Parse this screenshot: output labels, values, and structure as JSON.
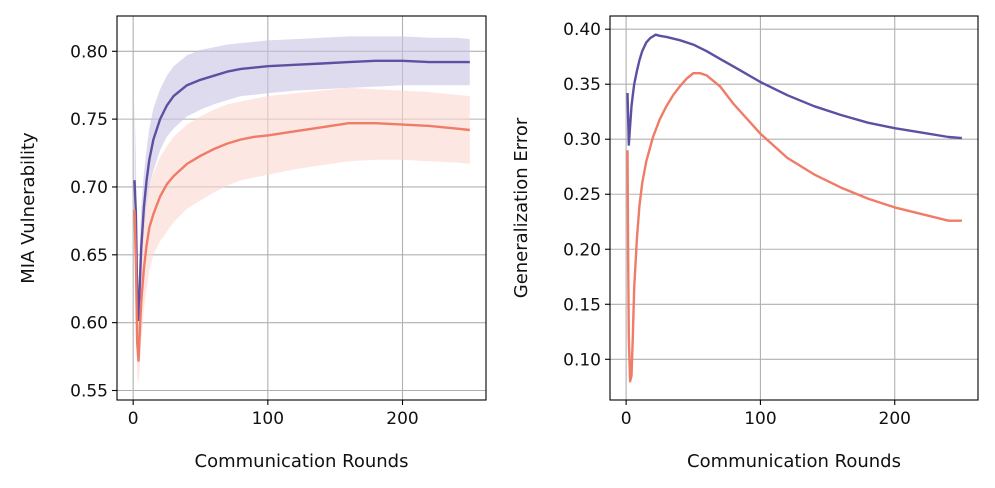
{
  "chart_data": [
    {
      "type": "line",
      "xlabel": "Communication Rounds",
      "ylabel": "MIA Vulnerability",
      "xlim": [
        -12,
        262
      ],
      "ylim": [
        0.543,
        0.826
      ],
      "xticks": [
        0,
        100,
        200
      ],
      "xtick_labels": [
        "0",
        "100",
        "200"
      ],
      "yticks": [
        0.55,
        0.6,
        0.65,
        0.7,
        0.75,
        0.8
      ],
      "ytick_labels": [
        "0.55",
        "0.60",
        "0.65",
        "0.70",
        "0.75",
        "0.80"
      ],
      "grid": true,
      "series": [
        {
          "name": "purple",
          "color": "#5e4fa2",
          "band_color": "#c9c3e4",
          "x": [
            1,
            2,
            3,
            4,
            5,
            6,
            8,
            10,
            12,
            15,
            20,
            25,
            30,
            40,
            50,
            60,
            70,
            80,
            90,
            100,
            120,
            140,
            160,
            180,
            200,
            220,
            240,
            250
          ],
          "y": [
            0.705,
            0.68,
            0.62,
            0.602,
            0.63,
            0.655,
            0.685,
            0.705,
            0.72,
            0.735,
            0.75,
            0.76,
            0.767,
            0.775,
            0.779,
            0.782,
            0.785,
            0.787,
            0.788,
            0.789,
            0.79,
            0.791,
            0.792,
            0.793,
            0.793,
            0.792,
            0.792,
            0.792
          ],
          "lower": [
            0.685,
            0.66,
            0.6,
            0.585,
            0.61,
            0.635,
            0.665,
            0.685,
            0.7,
            0.712,
            0.727,
            0.737,
            0.743,
            0.752,
            0.757,
            0.761,
            0.764,
            0.767,
            0.768,
            0.769,
            0.771,
            0.772,
            0.773,
            0.774,
            0.775,
            0.775,
            0.775,
            0.775
          ],
          "upper": [
            0.765,
            0.72,
            0.65,
            0.625,
            0.66,
            0.685,
            0.71,
            0.728,
            0.743,
            0.758,
            0.772,
            0.782,
            0.789,
            0.797,
            0.801,
            0.803,
            0.805,
            0.806,
            0.807,
            0.808,
            0.809,
            0.81,
            0.811,
            0.811,
            0.811,
            0.81,
            0.81,
            0.809
          ]
        },
        {
          "name": "salmon",
          "color": "#f07b67",
          "band_color": "#fbd7cf",
          "x": [
            1,
            2,
            3,
            4,
            5,
            6,
            8,
            10,
            12,
            15,
            20,
            25,
            30,
            40,
            50,
            60,
            70,
            80,
            90,
            100,
            120,
            140,
            160,
            180,
            200,
            220,
            240,
            250
          ],
          "y": [
            0.683,
            0.645,
            0.585,
            0.572,
            0.595,
            0.615,
            0.64,
            0.657,
            0.67,
            0.68,
            0.693,
            0.702,
            0.708,
            0.717,
            0.723,
            0.728,
            0.732,
            0.735,
            0.737,
            0.738,
            0.741,
            0.744,
            0.747,
            0.747,
            0.746,
            0.745,
            0.743,
            0.742
          ],
          "lower": [
            0.66,
            0.61,
            0.56,
            0.555,
            0.568,
            0.585,
            0.61,
            0.625,
            0.638,
            0.65,
            0.66,
            0.667,
            0.674,
            0.684,
            0.69,
            0.696,
            0.701,
            0.705,
            0.707,
            0.709,
            0.713,
            0.716,
            0.719,
            0.72,
            0.72,
            0.719,
            0.718,
            0.717
          ],
          "upper": [
            0.7,
            0.68,
            0.615,
            0.6,
            0.625,
            0.645,
            0.67,
            0.688,
            0.7,
            0.71,
            0.722,
            0.73,
            0.737,
            0.746,
            0.752,
            0.757,
            0.761,
            0.763,
            0.765,
            0.767,
            0.769,
            0.771,
            0.773,
            0.772,
            0.771,
            0.77,
            0.768,
            0.767
          ]
        }
      ]
    },
    {
      "type": "line",
      "xlabel": "Communication Rounds",
      "ylabel": "Generalization Error",
      "xlim": [
        -12,
        262
      ],
      "ylim": [
        0.063,
        0.412
      ],
      "xticks": [
        0,
        100,
        200
      ],
      "xtick_labels": [
        "0",
        "100",
        "200"
      ],
      "yticks": [
        0.1,
        0.15,
        0.2,
        0.25,
        0.3,
        0.35,
        0.4
      ],
      "ytick_labels": [
        "0.10",
        "0.15",
        "0.20",
        "0.25",
        "0.30",
        "0.35",
        "0.40"
      ],
      "grid": true,
      "series": [
        {
          "name": "purple",
          "color": "#5e4fa2",
          "x": [
            1,
            1.5,
            2,
            3,
            4,
            5,
            6,
            8,
            10,
            12,
            15,
            18,
            22,
            25,
            30,
            40,
            50,
            60,
            70,
            80,
            100,
            120,
            140,
            160,
            180,
            200,
            220,
            240,
            250
          ],
          "y": [
            0.342,
            0.32,
            0.295,
            0.312,
            0.33,
            0.34,
            0.35,
            0.362,
            0.372,
            0.38,
            0.388,
            0.392,
            0.395,
            0.394,
            0.393,
            0.39,
            0.386,
            0.38,
            0.373,
            0.366,
            0.352,
            0.34,
            0.33,
            0.322,
            0.315,
            0.31,
            0.306,
            0.302,
            0.301
          ]
        },
        {
          "name": "salmon",
          "color": "#f07b67",
          "x": [
            1,
            1.5,
            2,
            3,
            4,
            5,
            6,
            8,
            10,
            12,
            15,
            20,
            25,
            30,
            35,
            40,
            45,
            50,
            55,
            60,
            70,
            80,
            100,
            120,
            140,
            160,
            180,
            200,
            220,
            240,
            250
          ],
          "y": [
            0.29,
            0.2,
            0.12,
            0.08,
            0.085,
            0.12,
            0.165,
            0.21,
            0.24,
            0.26,
            0.28,
            0.302,
            0.318,
            0.33,
            0.34,
            0.348,
            0.355,
            0.36,
            0.36,
            0.358,
            0.348,
            0.332,
            0.305,
            0.283,
            0.268,
            0.256,
            0.246,
            0.238,
            0.232,
            0.226,
            0.226
          ]
        }
      ]
    }
  ]
}
